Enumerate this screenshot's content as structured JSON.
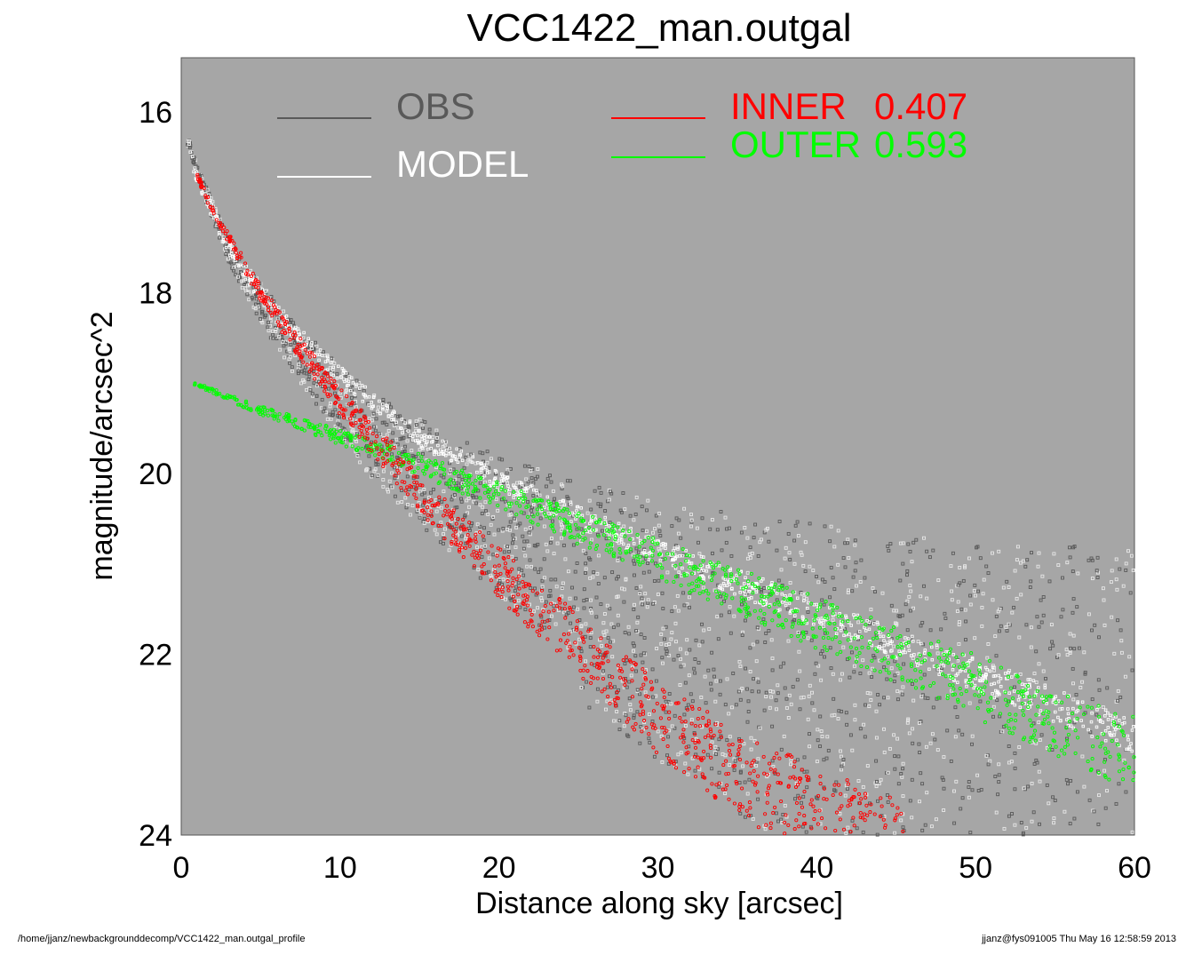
{
  "chart_data": {
    "type": "scatter",
    "title": "VCC1422_man.outgal",
    "xlabel": "Distance along sky [arcsec]",
    "ylabel": "magnitude/arcsec^2",
    "xlim": [
      0,
      60
    ],
    "ylim": [
      24,
      15.4
    ],
    "y_inverted": true,
    "x_ticks": [
      "0",
      "10",
      "20",
      "30",
      "40",
      "50",
      "60"
    ],
    "y_ticks": [
      "16",
      "18",
      "20",
      "22",
      "24"
    ],
    "background": "#a6a6a6",
    "legend": [
      {
        "label": "OBS",
        "value": "",
        "color": "#595959"
      },
      {
        "label": "MODEL",
        "value": "",
        "color": "#ffffff"
      },
      {
        "label": "INNER",
        "value": "0.407",
        "color": "#ff0000"
      },
      {
        "label": "OUTER",
        "value": "0.593",
        "color": "#00ff00"
      }
    ],
    "series": [
      {
        "name": "OBS",
        "color": "#595959",
        "x": [
          0.5,
          1,
          2,
          3,
          5,
          7,
          10,
          12,
          15,
          20,
          25,
          30,
          35,
          40,
          45,
          50,
          55,
          60
        ],
        "y": [
          16.3,
          16.6,
          17.0,
          17.4,
          17.9,
          18.3,
          18.8,
          19.1,
          19.4,
          19.8,
          20.1,
          20.3,
          20.45,
          20.55,
          20.65,
          20.75,
          20.8,
          20.8
        ]
      },
      {
        "name": "MODEL",
        "color": "#ffffff",
        "x": [
          0.5,
          1,
          2,
          3,
          5,
          7,
          10,
          12,
          15,
          20,
          25,
          30,
          35,
          40,
          45,
          50,
          55,
          60
        ],
        "y": [
          16.5,
          16.8,
          17.2,
          17.6,
          18.1,
          18.5,
          19.0,
          19.3,
          19.7,
          20.2,
          20.6,
          21.0,
          21.35,
          21.7,
          22.05,
          22.4,
          22.75,
          23.1
        ]
      },
      {
        "name": "INNER",
        "color": "#ff0000",
        "x": [
          1,
          2,
          3,
          5,
          7,
          10,
          12,
          15,
          20,
          25,
          30,
          32.5,
          35,
          40,
          45
        ],
        "y": [
          16.7,
          17.1,
          17.4,
          18.0,
          18.5,
          19.2,
          19.6,
          20.2,
          21.1,
          21.9,
          22.7,
          23.0,
          23.3,
          23.8,
          24.2
        ]
      },
      {
        "name": "OUTER",
        "color": "#00ff00",
        "x": [
          0.7,
          5,
          10,
          15,
          20,
          25,
          30,
          35,
          40,
          45,
          50,
          55,
          60
        ],
        "y": [
          19.0,
          19.3,
          19.6,
          19.9,
          20.25,
          20.6,
          20.95,
          21.3,
          21.65,
          22.0,
          22.35,
          22.75,
          23.1
        ]
      }
    ]
  },
  "footer": {
    "path": "/home/jjanz/newbackgrounddecomp/VCC1422_man.outgal_profile",
    "user_stamp": "jjanz@fys091005  Thu May 16 12:58:59 2013"
  }
}
